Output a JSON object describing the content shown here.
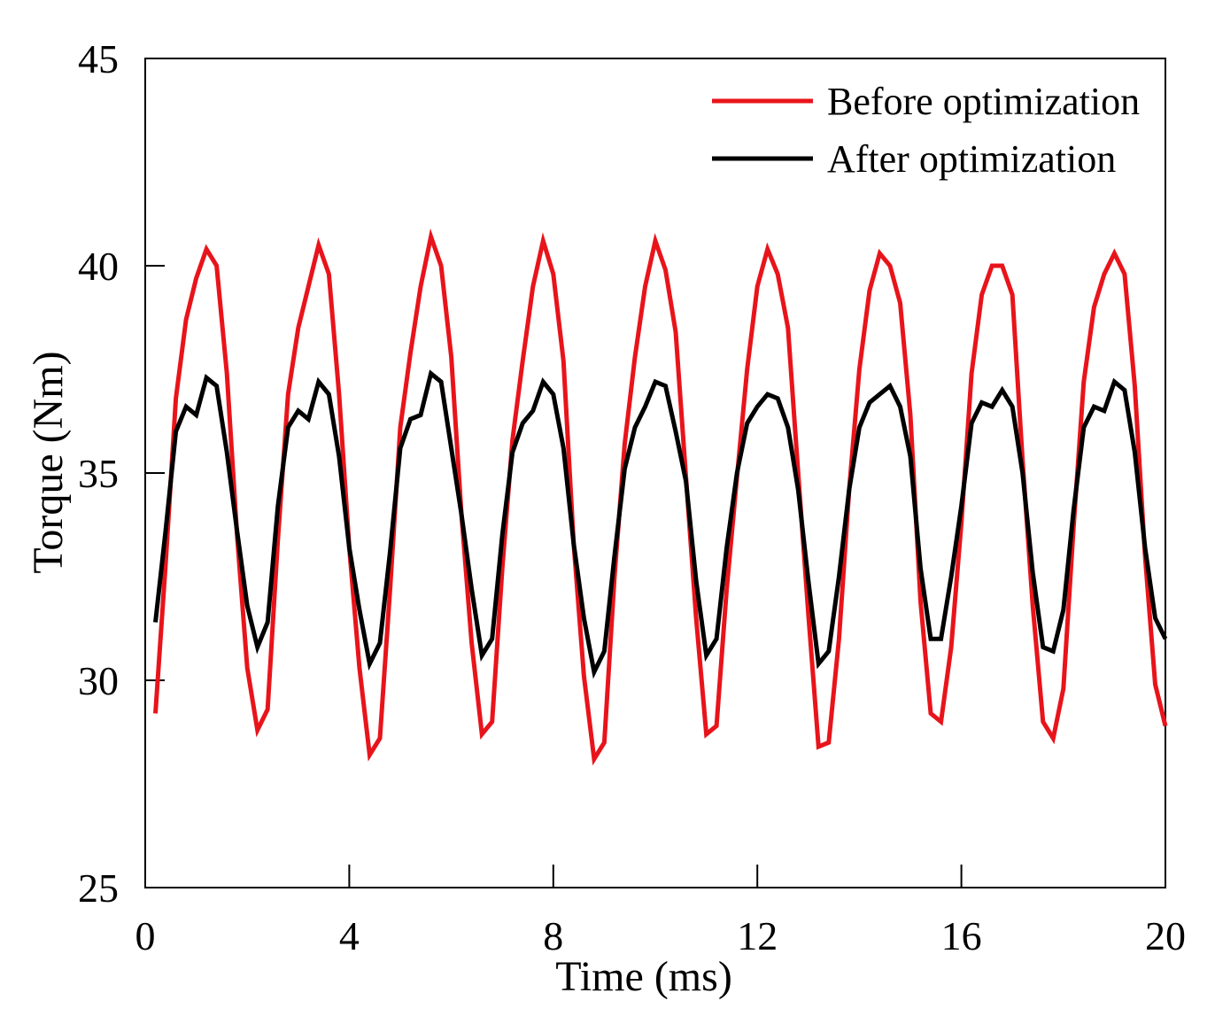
{
  "chart_data": {
    "type": "line",
    "title": "",
    "xlabel": "Time (ms)",
    "ylabel": "Torque (Nm)",
    "xlim": [
      0,
      20
    ],
    "ylim": [
      25,
      45
    ],
    "xticks": [
      0,
      4,
      8,
      12,
      16,
      20
    ],
    "yticks": [
      25,
      30,
      35,
      40,
      45
    ],
    "xtick_labels": [
      "0",
      "4",
      "8",
      "12",
      "16",
      "20"
    ],
    "ytick_labels": [
      "25",
      "30",
      "35",
      "40",
      "45"
    ],
    "grid": false,
    "legend_position": "top-right",
    "series": [
      {
        "name": "Before optimization",
        "color": "#e8141b",
        "x": [
          0.2,
          0.4,
          0.6,
          0.8,
          1.0,
          1.2,
          1.4,
          1.6,
          1.8,
          2.0,
          2.2,
          2.4,
          2.6,
          2.8,
          3.0,
          3.2,
          3.4,
          3.6,
          3.8,
          4.0,
          4.2,
          4.4,
          4.6,
          4.8,
          5.0,
          5.2,
          5.4,
          5.6,
          5.8,
          6.0,
          6.2,
          6.4,
          6.6,
          6.8,
          7.0,
          7.2,
          7.4,
          7.6,
          7.8,
          8.0,
          8.2,
          8.4,
          8.6,
          8.8,
          9.0,
          9.2,
          9.4,
          9.6,
          9.8,
          10.0,
          10.2,
          10.4,
          10.6,
          10.8,
          11.0,
          11.2,
          11.4,
          11.6,
          11.8,
          12.0,
          12.2,
          12.4,
          12.6,
          12.8,
          13.0,
          13.2,
          13.4,
          13.6,
          13.8,
          14.0,
          14.2,
          14.4,
          14.6,
          14.8,
          15.0,
          15.2,
          15.4,
          15.6,
          15.8,
          16.0,
          16.2,
          16.4,
          16.6,
          16.8,
          17.0,
          17.2,
          17.4,
          17.6,
          17.8,
          18.0,
          18.2,
          18.4,
          18.6,
          18.8,
          19.0,
          19.2,
          19.4,
          19.6,
          19.8,
          20.0
        ],
        "values": [
          29.2,
          32.8,
          36.8,
          38.7,
          39.7,
          40.4,
          40.0,
          37.4,
          33.5,
          30.3,
          28.8,
          29.3,
          33.4,
          36.9,
          38.5,
          39.5,
          40.5,
          39.8,
          36.9,
          33.2,
          30.3,
          28.2,
          28.6,
          32.2,
          36.1,
          37.9,
          39.5,
          40.7,
          40.0,
          37.8,
          34.0,
          30.9,
          28.7,
          29.0,
          32.7,
          35.8,
          37.7,
          39.5,
          40.6,
          39.8,
          37.7,
          33.3,
          30.1,
          28.1,
          28.5,
          32.5,
          35.7,
          37.8,
          39.5,
          40.6,
          39.9,
          38.4,
          34.9,
          31.5,
          28.7,
          28.9,
          32.2,
          34.9,
          37.5,
          39.5,
          40.4,
          39.8,
          38.5,
          35.0,
          31.6,
          28.4,
          28.5,
          31.0,
          34.6,
          37.5,
          39.4,
          40.3,
          40.0,
          39.1,
          36.4,
          31.9,
          29.2,
          29.0,
          30.8,
          33.8,
          37.4,
          39.3,
          40.0,
          40.0,
          39.3,
          35.3,
          31.8,
          29.0,
          28.6,
          29.8,
          33.7,
          37.2,
          39.0,
          39.8,
          40.3,
          39.8,
          37.1,
          33.0,
          29.9,
          28.9
        ]
      },
      {
        "name": "After optimization",
        "color": "#000000",
        "x": [
          0.2,
          0.4,
          0.6,
          0.8,
          1.0,
          1.2,
          1.4,
          1.6,
          1.8,
          2.0,
          2.2,
          2.4,
          2.6,
          2.8,
          3.0,
          3.2,
          3.4,
          3.6,
          3.8,
          4.0,
          4.2,
          4.4,
          4.6,
          4.8,
          5.0,
          5.2,
          5.4,
          5.6,
          5.8,
          6.0,
          6.2,
          6.4,
          6.6,
          6.8,
          7.0,
          7.2,
          7.4,
          7.6,
          7.8,
          8.0,
          8.2,
          8.4,
          8.6,
          8.8,
          9.0,
          9.2,
          9.4,
          9.6,
          9.8,
          10.0,
          10.2,
          10.4,
          10.6,
          10.8,
          11.0,
          11.2,
          11.4,
          11.6,
          11.8,
          12.0,
          12.2,
          12.4,
          12.6,
          12.8,
          13.0,
          13.2,
          13.4,
          13.6,
          13.8,
          14.0,
          14.2,
          14.4,
          14.6,
          14.8,
          15.0,
          15.2,
          15.4,
          15.6,
          15.8,
          16.0,
          16.2,
          16.4,
          16.6,
          16.8,
          17.0,
          17.2,
          17.4,
          17.6,
          17.8,
          18.0,
          18.2,
          18.4,
          18.6,
          18.8,
          19.0,
          19.2,
          19.4,
          19.6,
          19.8,
          20.0
        ],
        "values": [
          31.4,
          33.6,
          36.0,
          36.6,
          36.4,
          37.3,
          37.1,
          35.5,
          33.6,
          31.8,
          30.8,
          31.4,
          34.2,
          36.1,
          36.5,
          36.3,
          37.2,
          36.9,
          35.4,
          33.2,
          31.7,
          30.4,
          30.9,
          33.1,
          35.6,
          36.3,
          36.4,
          37.4,
          37.2,
          35.6,
          34.0,
          32.2,
          30.6,
          31.0,
          33.5,
          35.5,
          36.2,
          36.5,
          37.2,
          36.9,
          35.6,
          33.3,
          31.5,
          30.2,
          30.7,
          33.0,
          35.1,
          36.1,
          36.6,
          37.2,
          37.1,
          36.0,
          34.8,
          32.4,
          30.6,
          31.0,
          33.2,
          35.0,
          36.2,
          36.6,
          36.9,
          36.8,
          36.1,
          34.6,
          32.4,
          30.4,
          30.7,
          32.5,
          34.6,
          36.1,
          36.7,
          36.9,
          37.1,
          36.6,
          35.4,
          32.7,
          31.0,
          31.0,
          32.5,
          34.2,
          36.2,
          36.7,
          36.6,
          37.0,
          36.6,
          35.0,
          32.6,
          30.8,
          30.7,
          31.7,
          34.1,
          36.1,
          36.6,
          36.5,
          37.2,
          37.0,
          35.5,
          33.2,
          31.5,
          31.0
        ]
      }
    ]
  }
}
